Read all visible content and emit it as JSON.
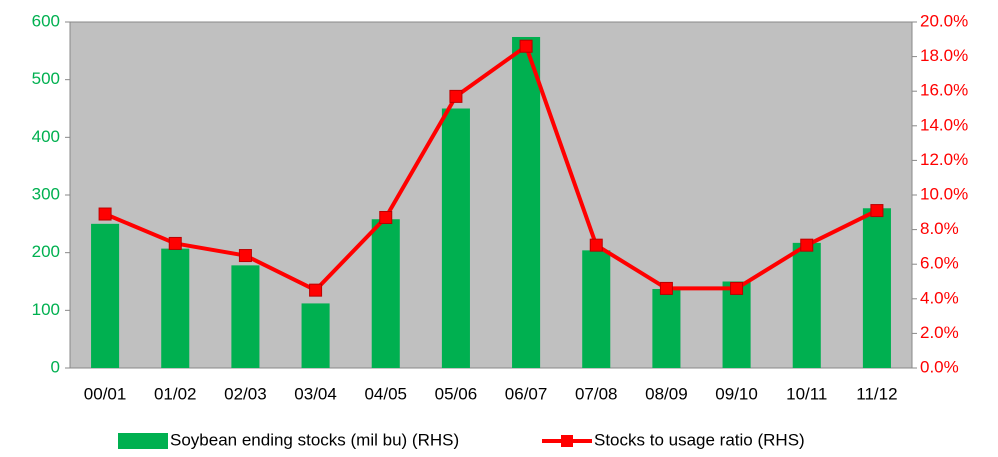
{
  "chart_data": {
    "type": "bar",
    "categories": [
      "00/01",
      "01/02",
      "02/03",
      "03/04",
      "04/05",
      "05/06",
      "06/07",
      "07/08",
      "08/09",
      "09/10",
      "10/11",
      "11/12"
    ],
    "series": [
      {
        "name": "Soybean ending stocks (mil bu) (RHS)",
        "type": "bar",
        "color": "#00b050",
        "values": [
          250,
          207,
          178,
          112,
          258,
          450,
          574,
          204,
          137,
          150,
          217,
          277
        ]
      },
      {
        "name": "Stocks to usage ratio (RHS)",
        "type": "line",
        "axis": "y2",
        "color": "#ff0000",
        "values": [
          8.9,
          7.2,
          6.5,
          4.5,
          8.7,
          15.7,
          18.6,
          7.1,
          4.6,
          4.6,
          7.1,
          9.1
        ]
      }
    ],
    "ylim": [
      0,
      600
    ],
    "yticks": [
      0,
      100,
      200,
      300,
      400,
      500,
      600
    ],
    "y2lim": [
      0,
      20
    ],
    "y2ticks": [
      {
        "value": 0,
        "label": "0.0%"
      },
      {
        "value": 2,
        "label": "2.0%"
      },
      {
        "value": 4,
        "label": "4.0%"
      },
      {
        "value": 6,
        "label": "6.0%"
      },
      {
        "value": 8,
        "label": "8.0%"
      },
      {
        "value": 10,
        "label": "10.0%"
      },
      {
        "value": 12,
        "label": "12.0%"
      },
      {
        "value": 14,
        "label": "14.0%"
      },
      {
        "value": 16,
        "label": "16.0%"
      },
      {
        "value": 18,
        "label": "18.0%"
      },
      {
        "value": 20,
        "label": "20.0%"
      }
    ],
    "ycolor": "#00b050",
    "y2color": "#ff0000",
    "grid": false,
    "legend": "bottom"
  }
}
